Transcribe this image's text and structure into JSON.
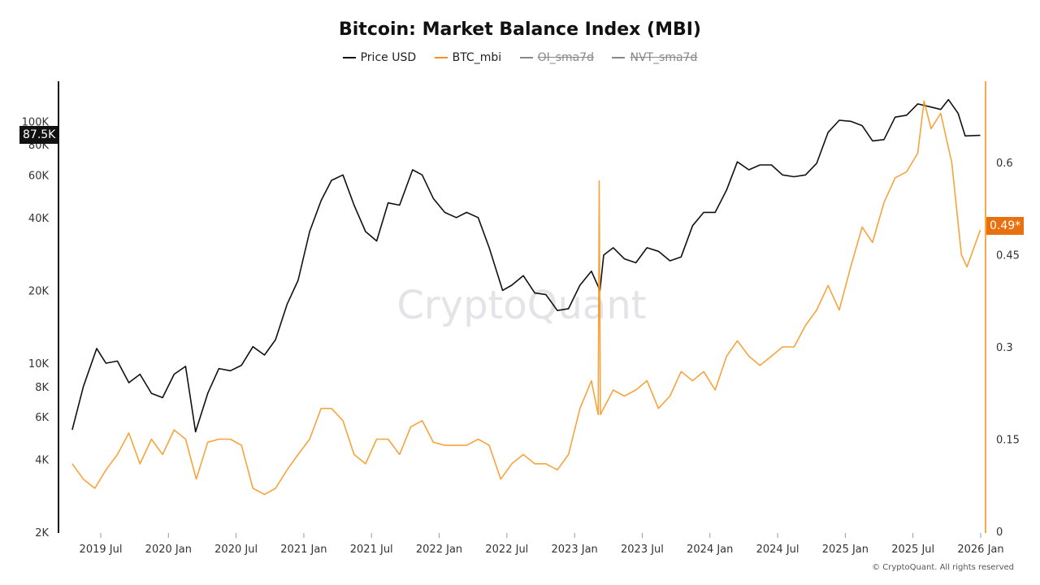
{
  "chart_data": {
    "type": "line",
    "title": "Bitcoin: Market Balance Index (MBI)",
    "legend": [
      {
        "name": "Price USD",
        "color": "#111111",
        "active": true
      },
      {
        "name": "BTC_mbi",
        "color": "#f7931a",
        "active": true
      },
      {
        "name": "OI_sma7d",
        "color": "#888888",
        "active": false
      },
      {
        "name": "NVT_sma7d",
        "color": "#888888",
        "active": false
      }
    ],
    "legend_position": "top",
    "x_ticks": [
      "2019 Jul",
      "2020 Jan",
      "2020 Jul",
      "2021 Jan",
      "2021 Jul",
      "2022 Jan",
      "2022 Jul",
      "2023 Jan",
      "2023 Jul",
      "2024 Jan",
      "2024 Jul",
      "2025 Jan",
      "2025 Jul",
      "2026 Jan"
    ],
    "y_left": {
      "scale": "log",
      "ticks": [
        "2K",
        "4K",
        "6K",
        "8K",
        "10K",
        "20K",
        "40K",
        "60K",
        "80K",
        "100K"
      ],
      "tick_values": [
        2000,
        4000,
        6000,
        8000,
        10000,
        20000,
        40000,
        60000,
        80000,
        100000
      ],
      "range": [
        2000,
        150000
      ]
    },
    "y_right": {
      "scale": "linear",
      "ticks": [
        "0",
        "0.15",
        "0.3",
        "0.45",
        "0.6"
      ],
      "tick_values": [
        0,
        0.15,
        0.3,
        0.45,
        0.6
      ],
      "range": [
        0,
        0.73
      ]
    },
    "grid": false,
    "last_values": {
      "price": "87.5K",
      "mbi": "0.49*"
    },
    "series": [
      {
        "name": "Price USD",
        "axis": "left",
        "points": [
          [
            "2019-04-15",
            5300
          ],
          [
            "2019-05-15",
            8000
          ],
          [
            "2019-06-20",
            11500
          ],
          [
            "2019-07-15",
            10000
          ],
          [
            "2019-08-15",
            10200
          ],
          [
            "2019-09-15",
            8300
          ],
          [
            "2019-10-15",
            9000
          ],
          [
            "2019-11-15",
            7500
          ],
          [
            "2019-12-15",
            7200
          ],
          [
            "2020-01-15",
            9000
          ],
          [
            "2020-02-15",
            9700
          ],
          [
            "2020-03-13",
            5200
          ],
          [
            "2020-04-15",
            7500
          ],
          [
            "2020-05-15",
            9500
          ],
          [
            "2020-06-15",
            9300
          ],
          [
            "2020-07-15",
            9800
          ],
          [
            "2020-08-15",
            11700
          ],
          [
            "2020-09-15",
            10800
          ],
          [
            "2020-10-15",
            12500
          ],
          [
            "2020-11-15",
            17500
          ],
          [
            "2020-12-15",
            22000
          ],
          [
            "2021-01-15",
            35000
          ],
          [
            "2021-02-15",
            47000
          ],
          [
            "2021-03-15",
            57000
          ],
          [
            "2021-04-15",
            60000
          ],
          [
            "2021-05-15",
            45000
          ],
          [
            "2021-06-15",
            35000
          ],
          [
            "2021-07-15",
            32000
          ],
          [
            "2021-08-15",
            46000
          ],
          [
            "2021-09-15",
            45000
          ],
          [
            "2021-10-20",
            63000
          ],
          [
            "2021-11-15",
            60000
          ],
          [
            "2021-12-15",
            48000
          ],
          [
            "2022-01-15",
            42000
          ],
          [
            "2022-02-15",
            40000
          ],
          [
            "2022-03-15",
            42000
          ],
          [
            "2022-04-15",
            40000
          ],
          [
            "2022-05-15",
            30000
          ],
          [
            "2022-06-20",
            20000
          ],
          [
            "2022-07-15",
            21000
          ],
          [
            "2022-08-15",
            23000
          ],
          [
            "2022-09-15",
            19500
          ],
          [
            "2022-10-15",
            19200
          ],
          [
            "2022-11-15",
            16500
          ],
          [
            "2022-12-15",
            16800
          ],
          [
            "2023-01-15",
            21000
          ],
          [
            "2023-02-15",
            24000
          ],
          [
            "2023-03-10",
            20000
          ],
          [
            "2023-03-20",
            28000
          ],
          [
            "2023-04-15",
            30000
          ],
          [
            "2023-05-15",
            27000
          ],
          [
            "2023-06-15",
            26000
          ],
          [
            "2023-07-15",
            30000
          ],
          [
            "2023-08-15",
            29000
          ],
          [
            "2023-09-15",
            26500
          ],
          [
            "2023-10-15",
            27500
          ],
          [
            "2023-11-15",
            37000
          ],
          [
            "2023-12-15",
            42000
          ],
          [
            "2024-01-15",
            42000
          ],
          [
            "2024-02-15",
            52000
          ],
          [
            "2024-03-15",
            68000
          ],
          [
            "2024-04-15",
            63000
          ],
          [
            "2024-05-15",
            66000
          ],
          [
            "2024-06-15",
            66000
          ],
          [
            "2024-07-15",
            60000
          ],
          [
            "2024-08-15",
            59000
          ],
          [
            "2024-09-15",
            60000
          ],
          [
            "2024-10-15",
            67000
          ],
          [
            "2024-11-15",
            90000
          ],
          [
            "2024-12-15",
            101000
          ],
          [
            "2025-01-15",
            100000
          ],
          [
            "2025-02-15",
            96000
          ],
          [
            "2025-03-15",
            83000
          ],
          [
            "2025-04-15",
            84000
          ],
          [
            "2025-05-15",
            104000
          ],
          [
            "2025-06-15",
            106000
          ],
          [
            "2025-07-15",
            118000
          ],
          [
            "2025-08-15",
            115000
          ],
          [
            "2025-09-15",
            112000
          ],
          [
            "2025-10-06",
            123000
          ],
          [
            "2025-11-01",
            108000
          ],
          [
            "2025-11-20",
            87000
          ],
          [
            "2025-12-31",
            87500
          ]
        ]
      },
      {
        "name": "BTC_mbi",
        "axis": "right",
        "points": [
          [
            "2019-04-15",
            0.11
          ],
          [
            "2019-05-15",
            0.085
          ],
          [
            "2019-06-15",
            0.07
          ],
          [
            "2019-07-15",
            0.1
          ],
          [
            "2019-08-15",
            0.125
          ],
          [
            "2019-09-15",
            0.16
          ],
          [
            "2019-10-15",
            0.11
          ],
          [
            "2019-11-15",
            0.15
          ],
          [
            "2019-12-15",
            0.125
          ],
          [
            "2020-01-15",
            0.165
          ],
          [
            "2020-02-15",
            0.15
          ],
          [
            "2020-03-15",
            0.085
          ],
          [
            "2020-04-15",
            0.145
          ],
          [
            "2020-05-15",
            0.15
          ],
          [
            "2020-06-15",
            0.15
          ],
          [
            "2020-07-15",
            0.14
          ],
          [
            "2020-08-15",
            0.07
          ],
          [
            "2020-09-15",
            0.06
          ],
          [
            "2020-10-15",
            0.07
          ],
          [
            "2020-11-15",
            0.1
          ],
          [
            "2020-12-15",
            0.125
          ],
          [
            "2021-01-15",
            0.15
          ],
          [
            "2021-02-15",
            0.2
          ],
          [
            "2021-03-15",
            0.2
          ],
          [
            "2021-04-15",
            0.18
          ],
          [
            "2021-05-15",
            0.125
          ],
          [
            "2021-06-15",
            0.11
          ],
          [
            "2021-07-15",
            0.15
          ],
          [
            "2021-08-15",
            0.15
          ],
          [
            "2021-09-15",
            0.125
          ],
          [
            "2021-10-15",
            0.17
          ],
          [
            "2021-11-15",
            0.18
          ],
          [
            "2021-12-15",
            0.145
          ],
          [
            "2022-01-15",
            0.14
          ],
          [
            "2022-02-15",
            0.14
          ],
          [
            "2022-03-15",
            0.14
          ],
          [
            "2022-04-15",
            0.15
          ],
          [
            "2022-05-15",
            0.14
          ],
          [
            "2022-06-15",
            0.085
          ],
          [
            "2022-07-15",
            0.11
          ],
          [
            "2022-08-15",
            0.125
          ],
          [
            "2022-09-15",
            0.11
          ],
          [
            "2022-10-15",
            0.11
          ],
          [
            "2022-11-15",
            0.1
          ],
          [
            "2022-12-15",
            0.125
          ],
          [
            "2023-01-15",
            0.2
          ],
          [
            "2023-02-15",
            0.245
          ],
          [
            "2023-03-05",
            0.19
          ],
          [
            "2023-03-08",
            0.57
          ],
          [
            "2023-03-11",
            0.19
          ],
          [
            "2023-04-15",
            0.23
          ],
          [
            "2023-05-15",
            0.22
          ],
          [
            "2023-06-15",
            0.23
          ],
          [
            "2023-07-15",
            0.245
          ],
          [
            "2023-08-15",
            0.2
          ],
          [
            "2023-09-15",
            0.22
          ],
          [
            "2023-10-15",
            0.26
          ],
          [
            "2023-11-15",
            0.245
          ],
          [
            "2023-12-15",
            0.26
          ],
          [
            "2024-01-15",
            0.23
          ],
          [
            "2024-02-15",
            0.285
          ],
          [
            "2024-03-15",
            0.31
          ],
          [
            "2024-04-15",
            0.285
          ],
          [
            "2024-05-15",
            0.27
          ],
          [
            "2024-06-15",
            0.285
          ],
          [
            "2024-07-15",
            0.3
          ],
          [
            "2024-08-15",
            0.3
          ],
          [
            "2024-09-15",
            0.335
          ],
          [
            "2024-10-15",
            0.36
          ],
          [
            "2024-11-15",
            0.4
          ],
          [
            "2024-12-15",
            0.36
          ],
          [
            "2025-01-15",
            0.43
          ],
          [
            "2025-02-15",
            0.495
          ],
          [
            "2025-03-15",
            0.47
          ],
          [
            "2025-04-15",
            0.535
          ],
          [
            "2025-05-15",
            0.575
          ],
          [
            "2025-06-15",
            0.585
          ],
          [
            "2025-07-15",
            0.615
          ],
          [
            "2025-08-01",
            0.7
          ],
          [
            "2025-08-20",
            0.655
          ],
          [
            "2025-09-15",
            0.68
          ],
          [
            "2025-10-15",
            0.6
          ],
          [
            "2025-11-10",
            0.45
          ],
          [
            "2025-11-25",
            0.43
          ],
          [
            "2025-12-31",
            0.49
          ]
        ]
      }
    ]
  },
  "watermark": "CryptoQuant",
  "footer": "© CryptoQuant. All rights reserved"
}
